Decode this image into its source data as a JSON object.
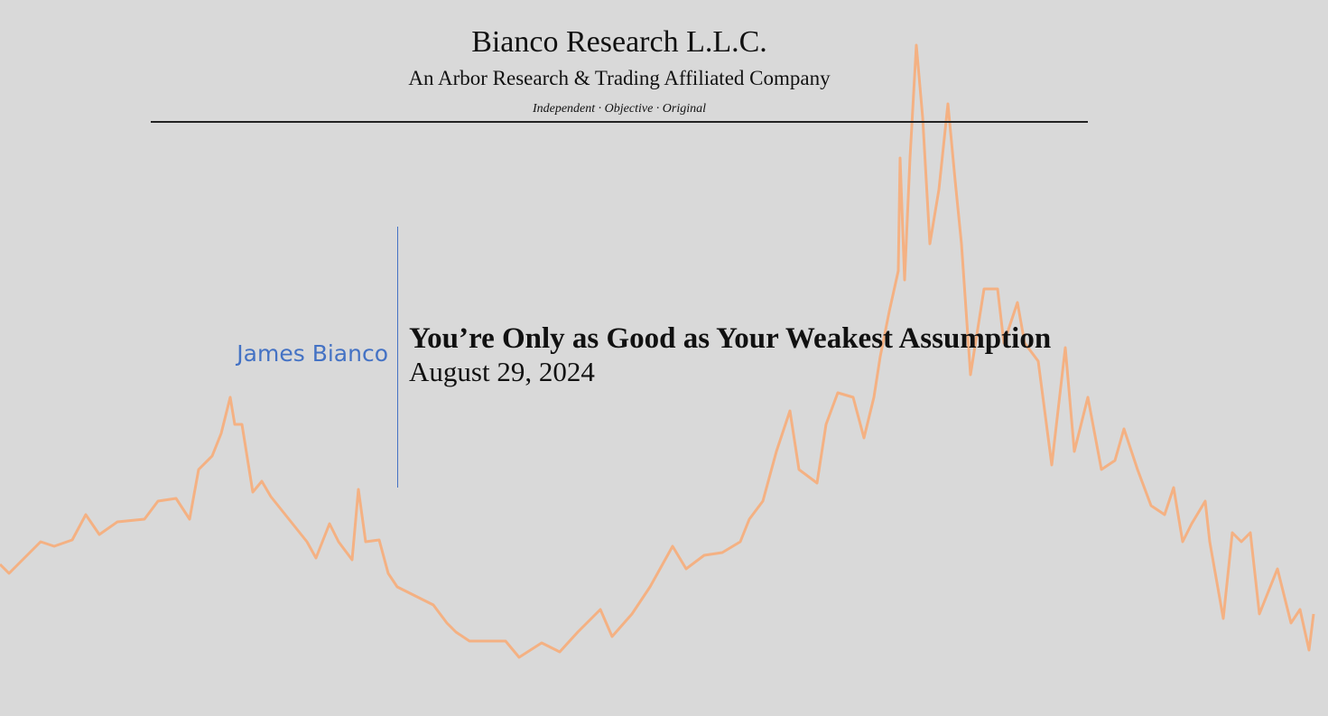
{
  "header": {
    "title": "Bianco Research L.L.C.",
    "subtitle": "An Arbor Research & Trading Affiliated Company",
    "tagline": "Independent · Objective · Original"
  },
  "author": "James Bianco",
  "title": "You’re Only as Good as Your Weakest Assumption",
  "date": "August 29, 2024"
}
